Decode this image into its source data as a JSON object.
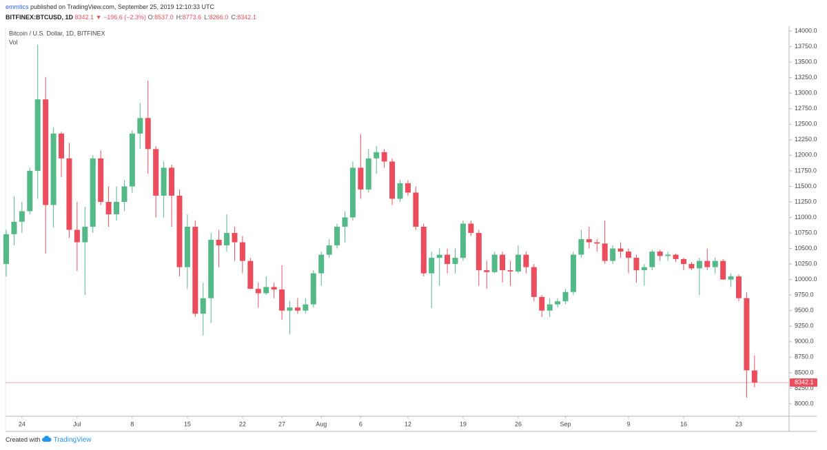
{
  "header": {
    "author": "emmtics",
    "published": "published on TradingView.com, September 25, 2019 12:10:33 UTC",
    "symbol": "BITFINEX:BTCUSD, 1D",
    "quote": [
      "8342.1",
      "▼",
      "−196.6 (−2.3%)"
    ],
    "ohlc": [
      {
        "key": "O:",
        "value": "8537.0"
      },
      {
        "key": "H:",
        "value": "8773.6"
      },
      {
        "key": "L:",
        "value": "8266.0"
      },
      {
        "key": "C:",
        "value": "8342.1"
      }
    ]
  },
  "footer": {
    "text": "Created with",
    "brand": "TradingView"
  },
  "chart_data": {
    "type": "candlestick",
    "title": "Bitcoin / U.S. Dollar, 1D, BITFINEX",
    "subtitle": "Vol",
    "up_color": "#53b987",
    "down_color": "#eb4d5c",
    "last_price": 8342.1,
    "grid": false,
    "categories": [
      null,
      null,
      "24",
      null,
      null,
      null,
      null,
      null,
      null,
      "Jul",
      null,
      null,
      null,
      null,
      null,
      null,
      "8",
      null,
      null,
      null,
      null,
      null,
      null,
      "15",
      null,
      null,
      null,
      null,
      null,
      null,
      "22",
      null,
      null,
      null,
      null,
      "27",
      null,
      null,
      null,
      null,
      "Aug",
      null,
      null,
      null,
      null,
      "6",
      null,
      null,
      null,
      null,
      null,
      "12",
      null,
      null,
      null,
      null,
      null,
      null,
      "19",
      null,
      null,
      null,
      null,
      null,
      null,
      "26",
      null,
      null,
      null,
      null,
      null,
      "Sep",
      null,
      null,
      null,
      null,
      null,
      null,
      null,
      "9",
      null,
      null,
      null,
      null,
      null,
      null,
      "16",
      null,
      null,
      null,
      null,
      null,
      null,
      "23",
      null,
      null
    ],
    "open": [
      10250,
      10730,
      10930,
      11100,
      11750,
      12900,
      11200,
      12350,
      11950,
      10800,
      10600,
      10850,
      11950,
      11250,
      11050,
      11250,
      11500,
      12350,
      12600,
      12100,
      11350,
      11800,
      11350,
      10200,
      10850,
      9450,
      9700,
      10640,
      10550,
      10750,
      10600,
      10300,
      9850,
      9780,
      9880,
      9840,
      9500,
      9550,
      9500,
      9600,
      10100,
      10400,
      10550,
      10850,
      11000,
      11800,
      11450,
      11950,
      12050,
      11900,
      11300,
      11550,
      11400,
      10850,
      10100,
      10350,
      10400,
      10250,
      10350,
      10900,
      10750,
      10150,
      10120,
      10400,
      10150,
      10130,
      10400,
      10200,
      9720,
      9500,
      9600,
      9650,
      9800,
      10400,
      10650,
      10600,
      10580,
      10300,
      10500,
      10450,
      10350,
      10150,
      10200,
      10450,
      10380,
      10400,
      10330,
      10250,
      10180,
      10300,
      10200,
      10300,
      10000,
      10050,
      9700,
      8537
    ],
    "high": [
      10800,
      11340,
      11250,
      11800,
      13780,
      13260,
      12450,
      12380,
      12200,
      11250,
      11170,
      12000,
      12080,
      11500,
      11500,
      11600,
      12400,
      12840,
      13200,
      12150,
      11900,
      11850,
      11450,
      11050,
      10950,
      9950,
      10750,
      10800,
      11050,
      10850,
      10700,
      10350,
      9950,
      10050,
      9950,
      10230,
      9650,
      9700,
      9700,
      10150,
      10450,
      10650,
      10900,
      11100,
      11900,
      12340,
      12100,
      12150,
      12100,
      11950,
      11600,
      11600,
      11500,
      10900,
      10450,
      10500,
      10500,
      10500,
      10950,
      10950,
      10800,
      10300,
      10450,
      10450,
      10300,
      10550,
      10450,
      10250,
      9750,
      9700,
      9700,
      9850,
      10450,
      10800,
      10850,
      10650,
      10950,
      10550,
      10600,
      10500,
      10400,
      10250,
      10480,
      10480,
      10450,
      10420,
      10350,
      10280,
      10350,
      10500,
      10350,
      10330,
      10100,
      10080,
      9800,
      8773.6
    ],
    "low": [
      10050,
      10550,
      10750,
      11050,
      11300,
      10420,
      10840,
      11650,
      10670,
      10140,
      9750,
      10750,
      11200,
      10850,
      10950,
      11100,
      11400,
      12100,
      11700,
      11000,
      11000,
      10850,
      10050,
      9850,
      9400,
      9100,
      9300,
      10200,
      10450,
      10300,
      10100,
      9850,
      9550,
      9750,
      9700,
      9350,
      9120,
      9450,
      9450,
      9550,
      9900,
      10350,
      10500,
      10600,
      10950,
      11300,
      11400,
      11700,
      11800,
      11200,
      11250,
      11350,
      10800,
      10050,
      9540,
      9900,
      10100,
      10100,
      10300,
      10700,
      9900,
      9850,
      10100,
      9950,
      9900,
      10100,
      10100,
      9650,
      9400,
      9400,
      9550,
      9600,
      9750,
      10350,
      10500,
      10450,
      10250,
      10250,
      10350,
      10100,
      9950,
      9900,
      10150,
      10300,
      10300,
      10280,
      10150,
      10150,
      9750,
      10150,
      10100,
      10000,
      9880,
      9650,
      8100,
      8266
    ],
    "close": [
      10730,
      10930,
      11100,
      11750,
      12900,
      11200,
      12350,
      11950,
      10800,
      10600,
      10850,
      11950,
      11250,
      11050,
      11250,
      11500,
      12350,
      12600,
      12100,
      11350,
      11800,
      11350,
      10200,
      10850,
      9450,
      9700,
      10640,
      10550,
      10750,
      10600,
      10300,
      9850,
      9780,
      9880,
      9840,
      9500,
      9550,
      9500,
      9600,
      10100,
      10400,
      10550,
      10850,
      11000,
      11800,
      11450,
      11950,
      12050,
      11900,
      11300,
      11550,
      11400,
      10850,
      10100,
      10350,
      10400,
      10250,
      10350,
      10900,
      10750,
      10150,
      10120,
      10400,
      10150,
      10130,
      10400,
      10200,
      9720,
      9500,
      9600,
      9650,
      9800,
      10400,
      10650,
      10600,
      10580,
      10300,
      10500,
      10450,
      10350,
      10150,
      10200,
      10450,
      10380,
      10400,
      10330,
      10250,
      10180,
      10300,
      10200,
      10300,
      10000,
      10050,
      9700,
      8538.7,
      8342.1
    ],
    "ylim": [
      7800,
      14078
    ],
    "yticks": [
      {
        "value": 8000,
        "label": "8000.0"
      },
      {
        "value": 8250,
        "label": "8250.0"
      },
      {
        "value": 8500,
        "label": "8500.0"
      },
      {
        "value": 8750,
        "label": "8750.0"
      },
      {
        "value": 9000,
        "label": "9000.0"
      },
      {
        "value": 9250,
        "label": "9250.0"
      },
      {
        "value": 9500,
        "label": "9500.0"
      },
      {
        "value": 9750,
        "label": "9750.0"
      },
      {
        "value": 10000,
        "label": "10000.0"
      },
      {
        "value": 10250,
        "label": "10250.0"
      },
      {
        "value": 10500,
        "label": "10500.0"
      },
      {
        "value": 10750,
        "label": "10750.0"
      },
      {
        "value": 11000,
        "label": "11000.0"
      },
      {
        "value": 11250,
        "label": "11250.0"
      },
      {
        "value": 11500,
        "label": "11500.0"
      },
      {
        "value": 11750,
        "label": "11750.0"
      },
      {
        "value": 12000,
        "label": "12000.0"
      },
      {
        "value": 12250,
        "label": "12250.0"
      },
      {
        "value": 12500,
        "label": "12500.0"
      },
      {
        "value": 12750,
        "label": "12750.0"
      },
      {
        "value": 13000,
        "label": "13000.0"
      },
      {
        "value": 13250,
        "label": "13250.0"
      },
      {
        "value": 13500,
        "label": "13500.0"
      },
      {
        "value": 13750,
        "label": "13750.0"
      },
      {
        "value": 14000,
        "label": "14000.0"
      }
    ]
  }
}
